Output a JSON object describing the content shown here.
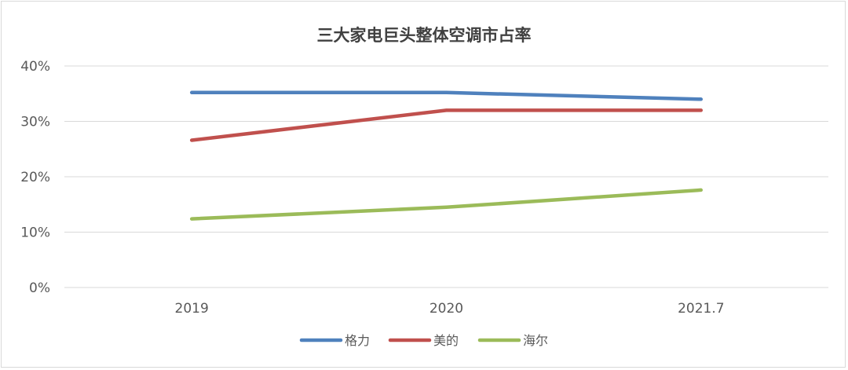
{
  "chart_data": {
    "type": "line",
    "title": "三大家电巨头整体空调市占率",
    "categories": [
      "2019",
      "2020",
      "2021.7"
    ],
    "series": [
      {
        "name": "格力",
        "values": [
          0.352,
          0.352,
          0.34
        ],
        "color": "#4f81bd"
      },
      {
        "name": "美的",
        "values": [
          0.266,
          0.32,
          0.32
        ],
        "color": "#c0504d"
      },
      {
        "name": "海尔",
        "values": [
          0.124,
          0.145,
          0.176
        ],
        "color": "#9bbb59"
      }
    ],
    "y_ticks": [
      "0%",
      "10%",
      "20%",
      "30%",
      "40%"
    ],
    "y_tick_values": [
      0,
      0.1,
      0.2,
      0.3,
      0.4
    ],
    "ylim": [
      0,
      0.4
    ],
    "grid": true,
    "legend_position": "bottom"
  }
}
